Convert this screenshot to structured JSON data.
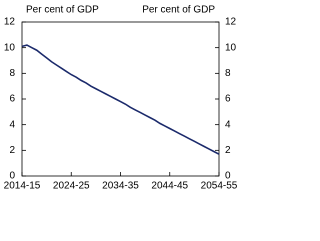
{
  "chart_data": {
    "type": "line",
    "y_label": "Per cent of GDP",
    "y2_label": "Per cent of GDP",
    "categories": [
      "2014-15",
      null,
      null,
      null,
      null,
      null,
      null,
      null,
      null,
      null,
      "2024-25",
      null,
      null,
      null,
      null,
      null,
      null,
      null,
      null,
      null,
      "2034-35",
      null,
      null,
      null,
      null,
      null,
      null,
      null,
      null,
      null,
      "2044-45",
      null,
      null,
      null,
      null,
      null,
      null,
      null,
      null,
      null,
      "2054-55"
    ],
    "values": [
      10.1,
      10.2,
      10.0,
      9.8,
      9.5,
      9.2,
      8.9,
      8.65,
      8.4,
      8.15,
      7.9,
      7.7,
      7.45,
      7.25,
      7.0,
      6.8,
      6.6,
      6.4,
      6.2,
      6.0,
      5.8,
      5.6,
      5.35,
      5.15,
      4.95,
      4.75,
      4.55,
      4.35,
      4.1,
      3.9,
      3.7,
      3.5,
      3.3,
      3.1,
      2.9,
      2.7,
      2.5,
      2.3,
      2.1,
      1.9,
      1.7
    ],
    "color": "#1b2a6b",
    "ylim": [
      0,
      12
    ],
    "yticks": [
      0,
      2,
      4,
      6,
      8,
      10,
      12
    ],
    "y2lim": [
      0,
      12
    ],
    "y2ticks": [
      0,
      2,
      4,
      6,
      8,
      10,
      12
    ]
  }
}
